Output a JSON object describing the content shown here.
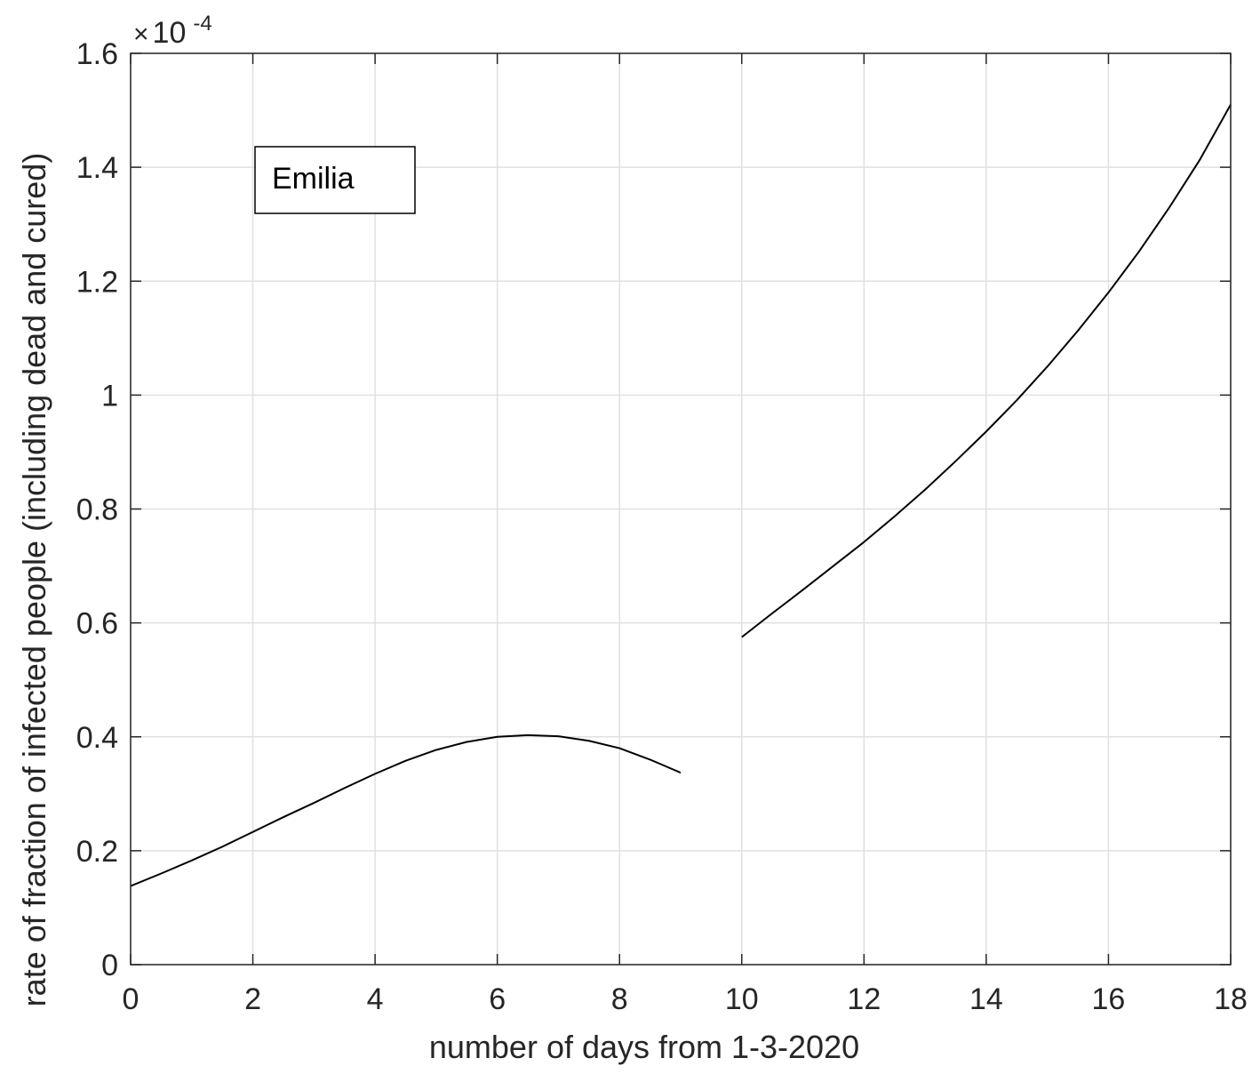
{
  "chart_data": {
    "type": "line",
    "xlabel": "number of days from 1-3-2020",
    "ylabel": "rate of fraction of infected people (including dead and cured)",
    "xlim": [
      0,
      18
    ],
    "ylim": [
      0,
      1.6
    ],
    "x_ticks": [
      0,
      2,
      4,
      6,
      8,
      10,
      12,
      14,
      16,
      18
    ],
    "x_tick_labels": [
      "0",
      "2",
      "4",
      "6",
      "8",
      "10",
      "12",
      "14",
      "16",
      "18"
    ],
    "y_ticks": [
      0,
      0.2,
      0.4,
      0.6,
      0.8,
      1.0,
      1.2,
      1.4,
      1.6
    ],
    "y_tick_labels": [
      "0",
      "0.2",
      "0.4",
      "0.6",
      "0.8",
      "1",
      "1.2",
      "1.4",
      "1.6"
    ],
    "y_exponent": {
      "base": "10",
      "power": "-4"
    },
    "grid": true,
    "annotation": "Emilia",
    "line_color": "#000000",
    "series": [
      {
        "x": [
          0,
          0.5,
          1,
          1.5,
          2,
          2.5,
          3,
          3.5,
          4,
          4.5,
          5,
          5.5,
          6,
          6.5,
          7,
          7.5,
          8,
          8.5,
          9
        ],
        "y": [
          0.138,
          0.16,
          0.183,
          0.207,
          0.233,
          0.259,
          0.284,
          0.31,
          0.335,
          0.358,
          0.377,
          0.391,
          0.4,
          0.403,
          0.401,
          0.393,
          0.38,
          0.36,
          0.337
        ]
      },
      {
        "x": [
          10,
          10.5,
          11,
          11.5,
          12,
          12.5,
          13,
          13.5,
          14,
          14.5,
          15,
          15.5,
          16,
          16.5,
          17,
          17.5,
          18
        ],
        "y": [
          0.575,
          0.617,
          0.658,
          0.7,
          0.742,
          0.787,
          0.834,
          0.884,
          0.936,
          0.991,
          1.05,
          1.113,
          1.18,
          1.252,
          1.33,
          1.414,
          1.51
        ]
      }
    ]
  }
}
